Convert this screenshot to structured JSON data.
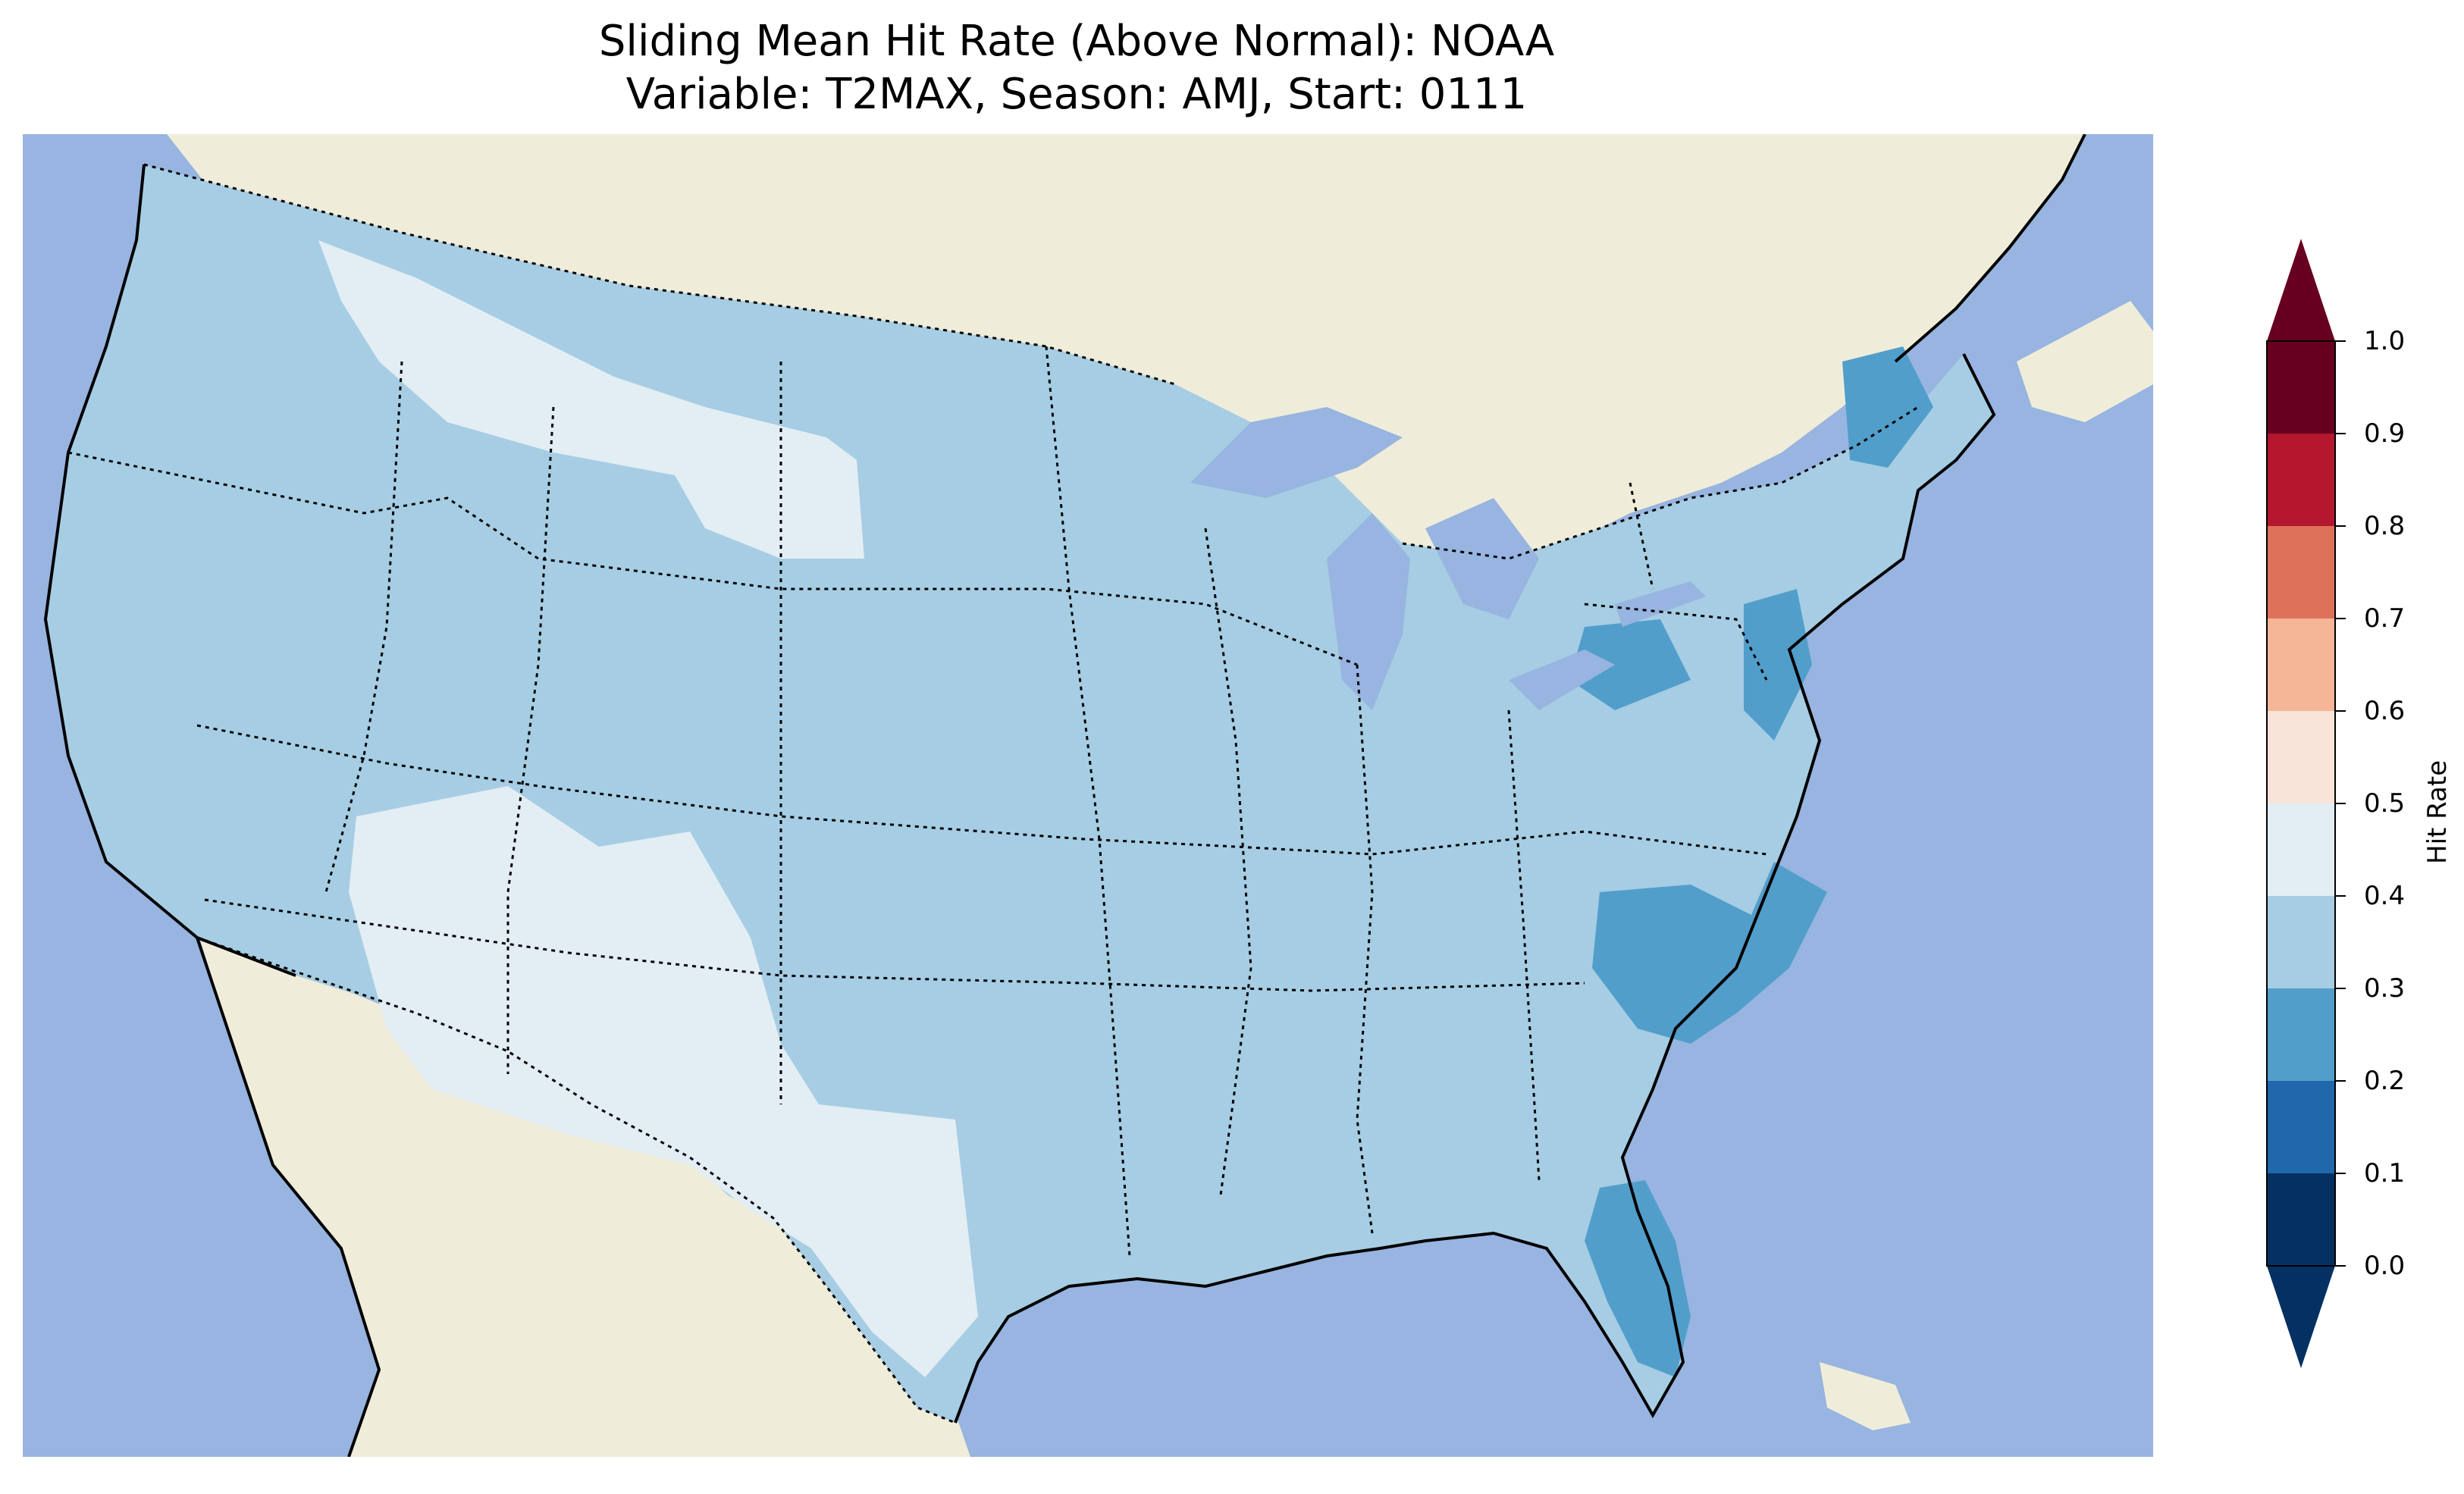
{
  "map": {
    "title_line1": "Sliding Mean Hit Rate (Above Normal): NOAA",
    "title_line2": "Variable: T2MAX, Season: AMJ, Start: 0111",
    "projection": "Lambert Conformal (CONUS)",
    "ocean_color": "#98b4e0",
    "land_color": "#efedda",
    "lake_color": "#98b4e0",
    "coastline_color": "#000000",
    "state_border_style": "dotted",
    "field_regions": [
      {
        "region": "Most of CONUS (west, plains, midwest, south)",
        "hit_rate_bin": "0.3-0.4",
        "color": "#a6cde3"
      },
      {
        "region": "Desert Southwest (AZ/NM/W Texas)",
        "hit_rate_bin": "0.4-0.5",
        "color": "#e2edf4"
      },
      {
        "region": "Northern Rockies / N Montana / NW Wyoming",
        "hit_rate_bin": "0.4-0.5",
        "color": "#e2edf4"
      },
      {
        "region": "Northeast (Maine, NJ, SE Pennsylvania)",
        "hit_rate_bin": "0.2-0.3",
        "color": "#529ecb"
      },
      {
        "region": "Carolinas & Virginia coast",
        "hit_rate_bin": "0.2-0.3",
        "color": "#529ecb"
      },
      {
        "region": "Central Florida",
        "hit_rate_bin": "0.2-0.3",
        "color": "#529ecb"
      }
    ]
  },
  "colorbar": {
    "label": "Hit Rate",
    "ticks": [
      "0.0",
      "0.1",
      "0.2",
      "0.3",
      "0.4",
      "0.5",
      "0.6",
      "0.7",
      "0.8",
      "0.9",
      "1.0"
    ],
    "colors_low_to_high": [
      "#053162",
      "#2167ac",
      "#529ecb",
      "#a6cde3",
      "#e2edf4",
      "#f8e4d8",
      "#f5b697",
      "#dd715a",
      "#b4172e",
      "#670020"
    ],
    "extend": "both"
  }
}
